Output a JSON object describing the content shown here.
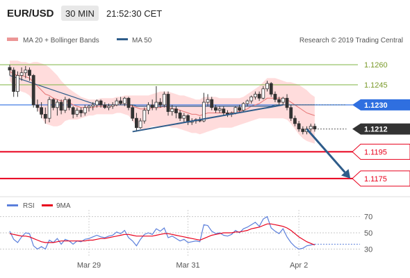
{
  "header": {
    "pair": "EUR/USD",
    "timeframe": "30 MIN",
    "time": "21:52:30 CET"
  },
  "legend": {
    "bollinger": "MA 20 + Bollinger Bands",
    "ma50": "MA 50",
    "source": "Research © 2019 Trading Central",
    "rsi": "RSI",
    "rsi_ma": "9MA"
  },
  "colors": {
    "grid_green": "#7cb342",
    "ma50": "#2e5c8a",
    "ma50_tag": "#2f6fe0",
    "bollinger_fill": "#ffd0d0",
    "bollinger_line": "#e57373",
    "candle": "#333333",
    "candle_up": "#ffffff",
    "support_red": "#e8001c",
    "trendline": "#2e5c8a",
    "rsi_line": "#5b7fdb",
    "rsi_ma_line": "#e8001c",
    "last_price_tag": "#333333"
  },
  "chart_data": [
    {
      "type": "candlestick",
      "title": "",
      "ylim": [
        1.1163,
        1.1272
      ],
      "levels": [
        {
          "label": "1.1260",
          "value": 1.126,
          "style": "green-grid"
        },
        {
          "label": "1.1245",
          "value": 1.1245,
          "style": "green-grid"
        },
        {
          "label": "1.1230",
          "value": 1.123,
          "style": "ma50-tag"
        },
        {
          "label": "1.1212",
          "value": 1.1212,
          "style": "last-price-tag"
        },
        {
          "label": "1.1195",
          "value": 1.1195,
          "style": "red-support"
        },
        {
          "label": "1.1175",
          "value": 1.1175,
          "style": "red-support"
        }
      ],
      "candles": [
        {
          "o": 1.1258,
          "h": 1.126,
          "l": 1.1252,
          "c": 1.1256
        },
        {
          "o": 1.1256,
          "h": 1.1258,
          "l": 1.1236,
          "c": 1.124
        },
        {
          "o": 1.124,
          "h": 1.1255,
          "l": 1.1236,
          "c": 1.1252
        },
        {
          "o": 1.1252,
          "h": 1.1258,
          "l": 1.1248,
          "c": 1.1254
        },
        {
          "o": 1.1254,
          "h": 1.1259,
          "l": 1.125,
          "c": 1.1256
        },
        {
          "o": 1.1256,
          "h": 1.1258,
          "l": 1.1248,
          "c": 1.1252
        },
        {
          "o": 1.1252,
          "h": 1.1253,
          "l": 1.1228,
          "c": 1.123
        },
        {
          "o": 1.123,
          "h": 1.1234,
          "l": 1.1225,
          "c": 1.1228
        },
        {
          "o": 1.1228,
          "h": 1.1232,
          "l": 1.122,
          "c": 1.1223
        },
        {
          "o": 1.1223,
          "h": 1.1228,
          "l": 1.1216,
          "c": 1.122
        },
        {
          "o": 1.122,
          "h": 1.1236,
          "l": 1.1217,
          "c": 1.1234
        },
        {
          "o": 1.1234,
          "h": 1.1235,
          "l": 1.1226,
          "c": 1.1228
        },
        {
          "o": 1.1228,
          "h": 1.1234,
          "l": 1.1222,
          "c": 1.1232
        },
        {
          "o": 1.1232,
          "h": 1.1234,
          "l": 1.1223,
          "c": 1.1226
        },
        {
          "o": 1.1226,
          "h": 1.1236,
          "l": 1.1224,
          "c": 1.1234
        },
        {
          "o": 1.1234,
          "h": 1.1235,
          "l": 1.1226,
          "c": 1.1228
        },
        {
          "o": 1.1228,
          "h": 1.1229,
          "l": 1.122,
          "c": 1.1223
        },
        {
          "o": 1.1223,
          "h": 1.1228,
          "l": 1.1221,
          "c": 1.1226
        },
        {
          "o": 1.1226,
          "h": 1.1228,
          "l": 1.1221,
          "c": 1.1224
        },
        {
          "o": 1.1224,
          "h": 1.123,
          "l": 1.1222,
          "c": 1.1228
        },
        {
          "o": 1.1228,
          "h": 1.123,
          "l": 1.1225,
          "c": 1.1229
        },
        {
          "o": 1.1229,
          "h": 1.1232,
          "l": 1.1226,
          "c": 1.123
        },
        {
          "o": 1.123,
          "h": 1.1234,
          "l": 1.1228,
          "c": 1.1233
        },
        {
          "o": 1.1233,
          "h": 1.1234,
          "l": 1.1228,
          "c": 1.123
        },
        {
          "o": 1.123,
          "h": 1.1232,
          "l": 1.1227,
          "c": 1.1228
        },
        {
          "o": 1.1228,
          "h": 1.1231,
          "l": 1.1226,
          "c": 1.1229
        },
        {
          "o": 1.1229,
          "h": 1.1232,
          "l": 1.1227,
          "c": 1.123
        },
        {
          "o": 1.123,
          "h": 1.1235,
          "l": 1.1229,
          "c": 1.1233
        },
        {
          "o": 1.1233,
          "h": 1.1236,
          "l": 1.123,
          "c": 1.1231
        },
        {
          "o": 1.1231,
          "h": 1.1236,
          "l": 1.1229,
          "c": 1.1235
        },
        {
          "o": 1.1235,
          "h": 1.1236,
          "l": 1.1226,
          "c": 1.1228
        },
        {
          "o": 1.1228,
          "h": 1.123,
          "l": 1.1218,
          "c": 1.122
        },
        {
          "o": 1.122,
          "h": 1.1224,
          "l": 1.121,
          "c": 1.1213
        },
        {
          "o": 1.1213,
          "h": 1.122,
          "l": 1.1212,
          "c": 1.1218
        },
        {
          "o": 1.1218,
          "h": 1.1228,
          "l": 1.1216,
          "c": 1.1226
        },
        {
          "o": 1.1226,
          "h": 1.1232,
          "l": 1.1223,
          "c": 1.123
        },
        {
          "o": 1.123,
          "h": 1.1234,
          "l": 1.1226,
          "c": 1.1228
        },
        {
          "o": 1.1228,
          "h": 1.1244,
          "l": 1.1226,
          "c": 1.1232
        },
        {
          "o": 1.1232,
          "h": 1.1235,
          "l": 1.1228,
          "c": 1.123
        },
        {
          "o": 1.123,
          "h": 1.124,
          "l": 1.1228,
          "c": 1.1238
        },
        {
          "o": 1.1238,
          "h": 1.124,
          "l": 1.1222,
          "c": 1.1225
        },
        {
          "o": 1.1225,
          "h": 1.123,
          "l": 1.1222,
          "c": 1.1227
        },
        {
          "o": 1.1227,
          "h": 1.1229,
          "l": 1.122,
          "c": 1.1224
        },
        {
          "o": 1.1224,
          "h": 1.1226,
          "l": 1.1218,
          "c": 1.122
        },
        {
          "o": 1.122,
          "h": 1.1224,
          "l": 1.1217,
          "c": 1.1222
        },
        {
          "o": 1.1222,
          "h": 1.1223,
          "l": 1.1215,
          "c": 1.1217
        },
        {
          "o": 1.1217,
          "h": 1.122,
          "l": 1.1215,
          "c": 1.1218
        },
        {
          "o": 1.1218,
          "h": 1.122,
          "l": 1.1216,
          "c": 1.1219
        },
        {
          "o": 1.1219,
          "h": 1.1221,
          "l": 1.1217,
          "c": 1.1218
        },
        {
          "o": 1.1218,
          "h": 1.1239,
          "l": 1.1217,
          "c": 1.1232
        },
        {
          "o": 1.1232,
          "h": 1.1238,
          "l": 1.1229,
          "c": 1.1234
        },
        {
          "o": 1.1234,
          "h": 1.1236,
          "l": 1.1226,
          "c": 1.1228
        },
        {
          "o": 1.1228,
          "h": 1.123,
          "l": 1.1224,
          "c": 1.1226
        },
        {
          "o": 1.1226,
          "h": 1.1229,
          "l": 1.1224,
          "c": 1.1227
        },
        {
          "o": 1.1227,
          "h": 1.1229,
          "l": 1.1222,
          "c": 1.1224
        },
        {
          "o": 1.1224,
          "h": 1.1226,
          "l": 1.1221,
          "c": 1.1223
        },
        {
          "o": 1.1223,
          "h": 1.1225,
          "l": 1.1221,
          "c": 1.1224
        },
        {
          "o": 1.1224,
          "h": 1.1229,
          "l": 1.1223,
          "c": 1.1228
        },
        {
          "o": 1.1228,
          "h": 1.123,
          "l": 1.1225,
          "c": 1.1226
        },
        {
          "o": 1.1226,
          "h": 1.1232,
          "l": 1.1225,
          "c": 1.1231
        },
        {
          "o": 1.1231,
          "h": 1.1234,
          "l": 1.1229,
          "c": 1.1233
        },
        {
          "o": 1.1233,
          "h": 1.1237,
          "l": 1.1231,
          "c": 1.1236
        },
        {
          "o": 1.1236,
          "h": 1.124,
          "l": 1.1234,
          "c": 1.1238
        },
        {
          "o": 1.1238,
          "h": 1.124,
          "l": 1.1233,
          "c": 1.1235
        },
        {
          "o": 1.1235,
          "h": 1.1244,
          "l": 1.1234,
          "c": 1.1242
        },
        {
          "o": 1.1242,
          "h": 1.1248,
          "l": 1.124,
          "c": 1.1246
        },
        {
          "o": 1.1246,
          "h": 1.1247,
          "l": 1.1236,
          "c": 1.1238
        },
        {
          "o": 1.1238,
          "h": 1.124,
          "l": 1.1232,
          "c": 1.1234
        },
        {
          "o": 1.1234,
          "h": 1.1236,
          "l": 1.123,
          "c": 1.1232
        },
        {
          "o": 1.1232,
          "h": 1.1236,
          "l": 1.123,
          "c": 1.1235
        },
        {
          "o": 1.1235,
          "h": 1.1238,
          "l": 1.1226,
          "c": 1.1228
        },
        {
          "o": 1.1228,
          "h": 1.123,
          "l": 1.1218,
          "c": 1.122
        },
        {
          "o": 1.122,
          "h": 1.1222,
          "l": 1.1214,
          "c": 1.1216
        },
        {
          "o": 1.1216,
          "h": 1.1218,
          "l": 1.121,
          "c": 1.1212
        },
        {
          "o": 1.1212,
          "h": 1.1214,
          "l": 1.1208,
          "c": 1.121
        },
        {
          "o": 1.121,
          "h": 1.1214,
          "l": 1.1208,
          "c": 1.1212
        },
        {
          "o": 1.1212,
          "h": 1.1216,
          "l": 1.121,
          "c": 1.1214
        },
        {
          "o": 1.1214,
          "h": 1.1216,
          "l": 1.121,
          "c": 1.1212
        }
      ],
      "ma20": [
        1.1255,
        1.1253,
        1.1252,
        1.1252,
        1.1251,
        1.125,
        1.1247,
        1.1244,
        1.1241,
        1.1238,
        1.1237,
        1.1235,
        1.1234,
        1.1233,
        1.1233,
        1.1232,
        1.123,
        1.1229,
        1.1228,
        1.1228,
        1.1228,
        1.1228,
        1.1229,
        1.1229,
        1.1229,
        1.1229,
        1.1229,
        1.123,
        1.123,
        1.123,
        1.123,
        1.1229,
        1.1228,
        1.1227,
        1.1227,
        1.1227,
        1.1228,
        1.1228,
        1.1228,
        1.1229,
        1.1228,
        1.1227,
        1.1227,
        1.1226,
        1.1225,
        1.1224,
        1.1223,
        1.1223,
        1.1222,
        1.1223,
        1.1224,
        1.1224,
        1.1224,
        1.1224,
        1.1224,
        1.1224,
        1.1224,
        1.1225,
        1.1225,
        1.1226,
        1.1227,
        1.1229,
        1.123,
        1.1231,
        1.1233,
        1.1235,
        1.1235,
        1.1235,
        1.1235,
        1.1235,
        1.1234,
        1.1232,
        1.123,
        1.1228,
        1.1226,
        1.1224,
        1.1223,
        1.1222
      ],
      "bb_upper": [
        1.1263,
        1.1263,
        1.1263,
        1.1262,
        1.1262,
        1.1261,
        1.1262,
        1.1262,
        1.1261,
        1.126,
        1.1258,
        1.1255,
        1.1252,
        1.1248,
        1.1245,
        1.1242,
        1.124,
        1.1238,
        1.1236,
        1.1235,
        1.1234,
        1.1234,
        1.1234,
        1.1235,
        1.1235,
        1.1235,
        1.1235,
        1.1236,
        1.1236,
        1.1237,
        1.1237,
        1.1237,
        1.1237,
        1.1237,
        1.1237,
        1.1237,
        1.1238,
        1.1239,
        1.124,
        1.124,
        1.124,
        1.1239,
        1.1238,
        1.1237,
        1.1237,
        1.1236,
        1.1235,
        1.1234,
        1.1234,
        1.1236,
        1.1236,
        1.1236,
        1.1236,
        1.1235,
        1.1235,
        1.1235,
        1.1235,
        1.1235,
        1.1235,
        1.1236,
        1.1238,
        1.124,
        1.1242,
        1.1244,
        1.1247,
        1.125,
        1.125,
        1.125,
        1.1249,
        1.1248,
        1.1247,
        1.1247,
        1.1246,
        1.1245,
        1.1243,
        1.1241,
        1.1238,
        1.1236
      ],
      "bb_lower": [
        1.1248,
        1.1244,
        1.1241,
        1.124,
        1.1239,
        1.1237,
        1.1232,
        1.1227,
        1.1221,
        1.1216,
        1.1215,
        1.1214,
        1.1214,
        1.1215,
        1.1218,
        1.1219,
        1.1219,
        1.1219,
        1.122,
        1.1221,
        1.1222,
        1.1222,
        1.1223,
        1.1223,
        1.1223,
        1.1223,
        1.1223,
        1.1224,
        1.1224,
        1.1223,
        1.1222,
        1.1218,
        1.1214,
        1.1212,
        1.1212,
        1.1213,
        1.1214,
        1.1214,
        1.1214,
        1.1214,
        1.1214,
        1.1213,
        1.1213,
        1.1212,
        1.1211,
        1.121,
        1.1209,
        1.1209,
        1.1208,
        1.1209,
        1.121,
        1.1211,
        1.1212,
        1.1213,
        1.1213,
        1.1213,
        1.1213,
        1.1214,
        1.1215,
        1.1216,
        1.1217,
        1.1218,
        1.1219,
        1.122,
        1.122,
        1.122,
        1.122,
        1.122,
        1.122,
        1.122,
        1.1219,
        1.1216,
        1.1212,
        1.1208,
        1.1205,
        1.1203,
        1.1202,
        1.1201
      ],
      "ma50": [
        1.1252,
        1.1251,
        1.125,
        1.1249,
        1.1248,
        1.1247,
        1.1246,
        1.1245,
        1.1244,
        1.1243,
        1.1242,
        1.1241,
        1.124,
        1.1239,
        1.1238,
        1.1237,
        1.1236,
        1.1235,
        1.1234,
        1.1233,
        1.1232,
        1.1231,
        1.1231,
        1.123,
        1.123,
        1.123,
        1.123,
        1.123,
        1.123,
        1.123,
        1.123,
        1.123,
        1.1229,
        1.1229,
        1.1229,
        1.1229,
        1.1229,
        1.1229,
        1.1229,
        1.1229,
        1.1229,
        1.1229,
        1.1229,
        1.1229,
        1.1229,
        1.1229,
        1.1229,
        1.1229,
        1.1229,
        1.1229,
        1.1229,
        1.1229,
        1.1229,
        1.1229,
        1.1229,
        1.1229,
        1.1229,
        1.1229,
        1.1229,
        1.1229,
        1.1229,
        1.1229,
        1.1229,
        1.1229,
        1.1229,
        1.1229,
        1.1229,
        1.123,
        1.123,
        1.123,
        1.123,
        1.123,
        1.123,
        1.123,
        1.123,
        1.123,
        1.123,
        1.123
      ],
      "trendline": [
        {
          "i": 31,
          "v": 1.121
        },
        {
          "i": 69,
          "v": 1.123
        }
      ],
      "projection": [
        {
          "i": 75,
          "v": 1.1212
        },
        {
          "i": 86,
          "v": 1.1175
        }
      ],
      "ma50_extension": [
        {
          "i": 71,
          "v": 1.123
        },
        {
          "i": 85,
          "v": 1.123
        }
      ],
      "last_extension": [
        {
          "i": 77,
          "v": 1.1212
        },
        {
          "i": 85,
          "v": 1.1212
        }
      ]
    },
    {
      "type": "line",
      "title": "",
      "ylim": [
        20,
        80
      ],
      "yticks": [
        "70",
        "50",
        "30"
      ],
      "ytick_values": [
        70,
        50,
        30
      ],
      "xtick_labels": [
        "Mar 29",
        "Mar 31",
        "Apr 2"
      ],
      "xtick_index": [
        20,
        45,
        73
      ],
      "series": [
        {
          "name": "RSI",
          "values": [
            52,
            42,
            38,
            45,
            50,
            49,
            34,
            30,
            33,
            30,
            41,
            38,
            43,
            36,
            42,
            40,
            36,
            40,
            39,
            42,
            43,
            45,
            47,
            45,
            44,
            46,
            47,
            51,
            49,
            53,
            44,
            40,
            34,
            42,
            48,
            50,
            48,
            55,
            52,
            56,
            44,
            46,
            43,
            40,
            42,
            38,
            39,
            40,
            39,
            60,
            59,
            52,
            49,
            50,
            47,
            46,
            48,
            53,
            50,
            55,
            57,
            60,
            63,
            58,
            67,
            70,
            56,
            52,
            49,
            55,
            45,
            38,
            33,
            30,
            31,
            34,
            35,
            36
          ]
        },
        {
          "name": "9MA",
          "values": [
            49,
            48,
            47,
            46,
            46,
            45,
            43,
            41,
            39,
            38,
            38,
            38,
            39,
            40,
            40,
            40,
            40,
            40,
            40,
            40,
            41,
            41,
            42,
            43,
            43,
            44,
            45,
            46,
            47,
            48,
            48,
            47,
            46,
            46,
            46,
            46,
            46,
            47,
            48,
            49,
            49,
            48,
            47,
            46,
            45,
            44,
            43,
            42,
            41,
            43,
            45,
            47,
            48,
            49,
            50,
            50,
            50,
            51,
            51,
            52,
            53,
            55,
            56,
            57,
            59,
            61,
            61,
            60,
            59,
            58,
            56,
            53,
            49,
            45,
            42,
            39,
            37,
            35
          ]
        }
      ]
    }
  ]
}
